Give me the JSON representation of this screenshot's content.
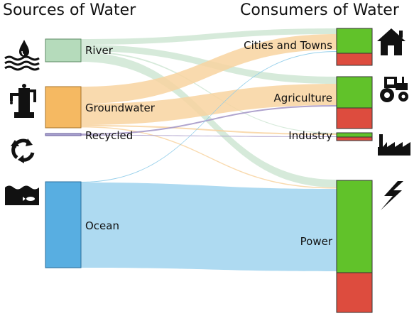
{
  "titles": {
    "sources": "Sources of Water",
    "consumers": "Consumers of Water"
  },
  "sources": [
    {
      "id": "river",
      "label": "River",
      "color": "#b5dbbb",
      "icon": "water-drop-icon"
    },
    {
      "id": "groundwater",
      "label": "Groundwater",
      "color": "#f5b962",
      "icon": "water-pump-icon"
    },
    {
      "id": "recycled",
      "label": "Recycled",
      "color": "#a9a2cf",
      "icon": "recycle-icon"
    },
    {
      "id": "ocean",
      "label": "Ocean",
      "color": "#58aee1",
      "icon": "ocean-fish-icon"
    }
  ],
  "consumers": [
    {
      "id": "cities",
      "label": "Cities and Towns",
      "icon": "house-icon"
    },
    {
      "id": "agriculture",
      "label": "Agriculture",
      "icon": "tractor-icon"
    },
    {
      "id": "industry",
      "label": "Industry",
      "icon": "factory-icon"
    },
    {
      "id": "power",
      "label": "Power",
      "icon": "lightning-icon"
    }
  ],
  "colors": {
    "consumed": "#61c22a",
    "returned": "#dd4c3e",
    "river_flow": "#cfe6d3",
    "groundwater_flow": "#f8d3a0",
    "recycled_flow": "#a79ac9",
    "ocean_flow": "#a5d6f0"
  }
}
